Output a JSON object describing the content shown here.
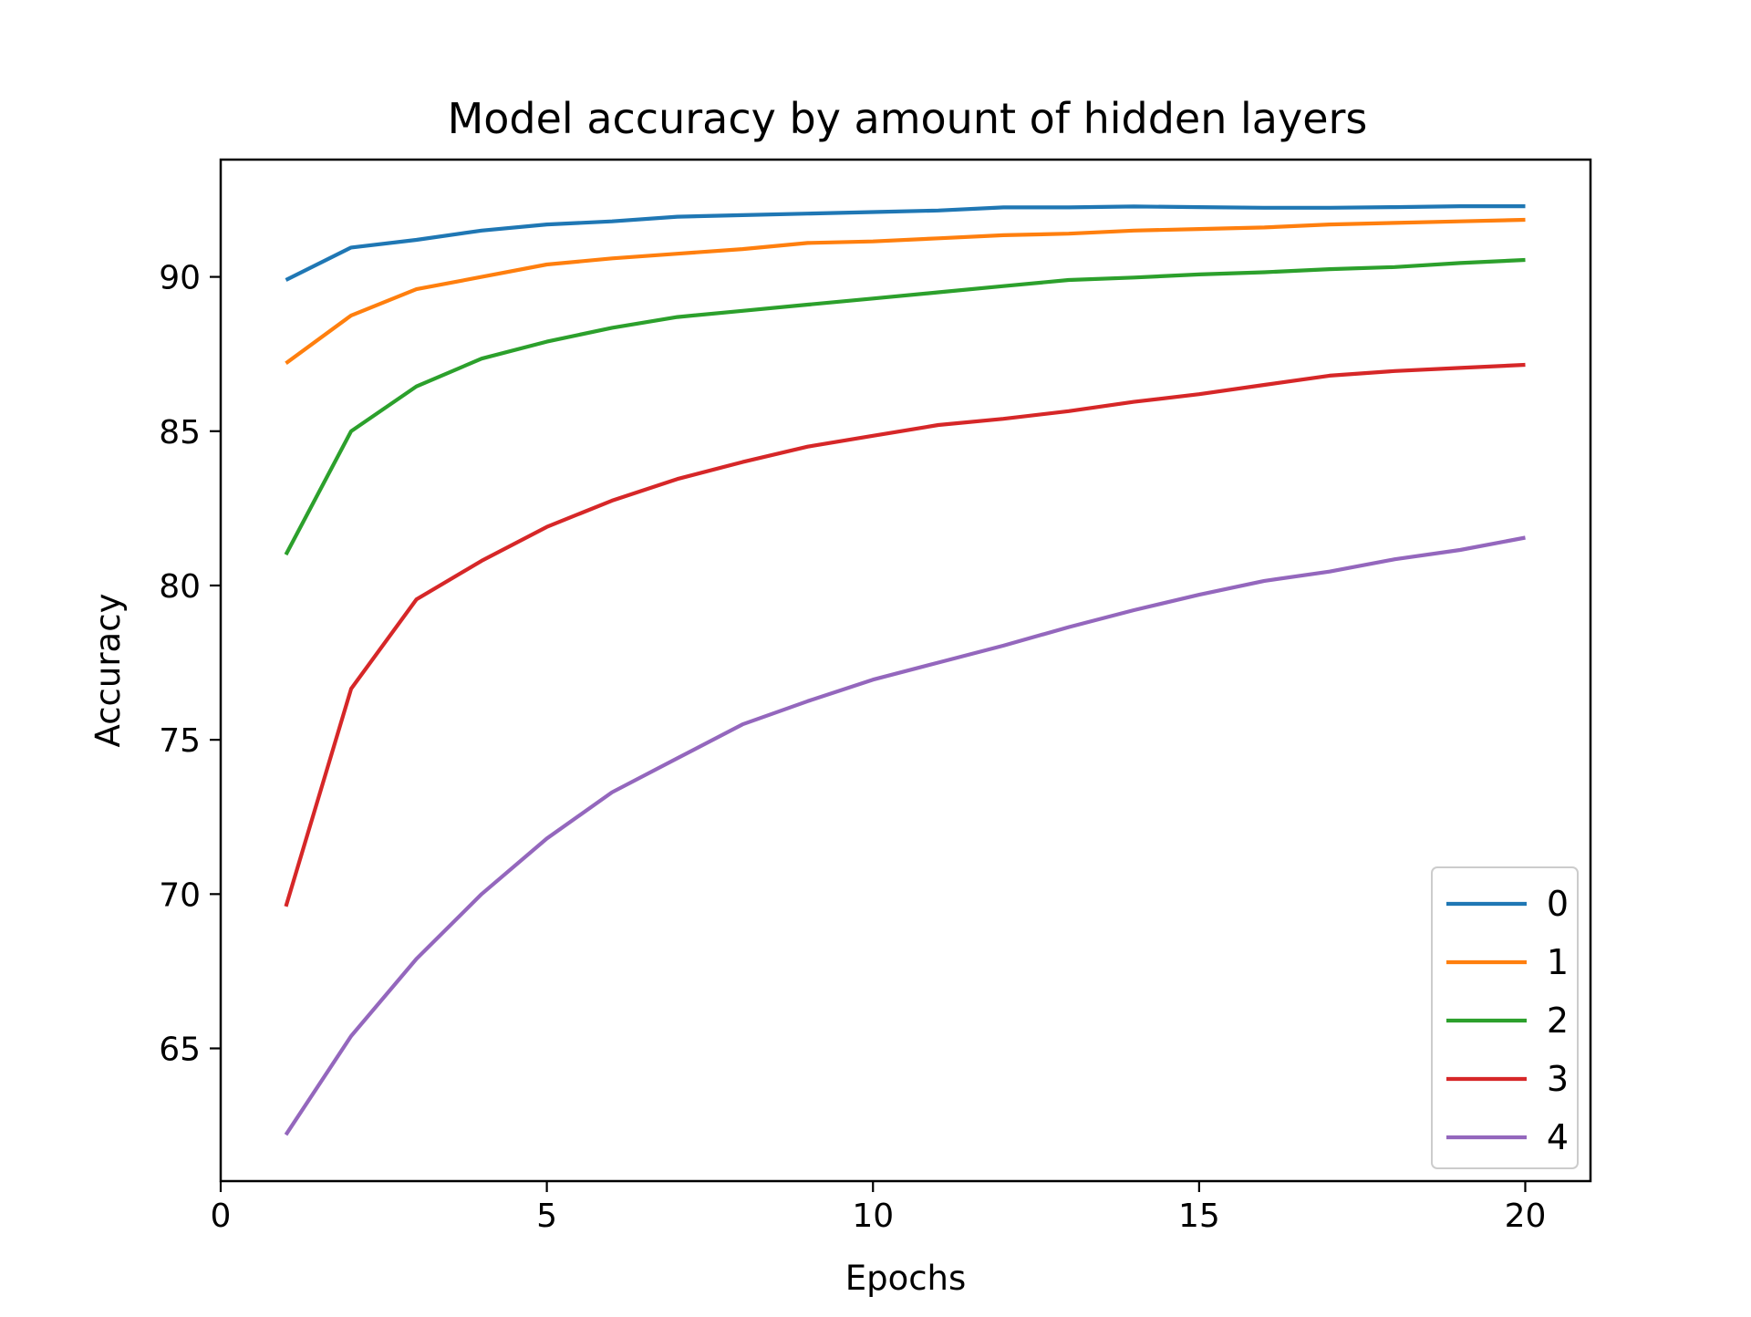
{
  "chart_data": {
    "type": "line",
    "title": "Model accuracy by amount of hidden layers",
    "xlabel": "Epochs",
    "ylabel": "Accuracy",
    "xlim": [
      0,
      21
    ],
    "ylim": [
      60.7,
      93.8
    ],
    "grid": false,
    "legend_position": "lower-right",
    "x_ticks": [
      0,
      5,
      10,
      15,
      20
    ],
    "x_tick_labels": [
      "0",
      "5",
      "10",
      "15",
      "20"
    ],
    "y_ticks": [
      65,
      70,
      75,
      80,
      85,
      90
    ],
    "y_tick_labels": [
      "65",
      "70",
      "75",
      "80",
      "85",
      "90"
    ],
    "x": [
      1,
      2,
      3,
      4,
      5,
      6,
      7,
      8,
      9,
      10,
      11,
      12,
      13,
      14,
      15,
      16,
      17,
      18,
      19,
      20
    ],
    "series": [
      {
        "name": "0",
        "color": "#1f77b4",
        "values": [
          89.9,
          90.95,
          91.2,
          91.5,
          91.7,
          91.8,
          91.95,
          92.0,
          92.05,
          92.1,
          92.15,
          92.25,
          92.25,
          92.28,
          92.26,
          92.24,
          92.24,
          92.26,
          92.29,
          92.29
        ]
      },
      {
        "name": "1",
        "color": "#ff7f0e",
        "values": [
          87.2,
          88.75,
          89.6,
          90.0,
          90.4,
          90.6,
          90.75,
          90.9,
          91.1,
          91.15,
          91.25,
          91.35,
          91.4,
          91.5,
          91.55,
          91.6,
          91.7,
          91.75,
          91.8,
          91.85
        ]
      },
      {
        "name": "2",
        "color": "#2ca02c",
        "values": [
          81.0,
          85.0,
          86.45,
          87.35,
          87.9,
          88.35,
          88.7,
          88.9,
          89.1,
          89.3,
          89.5,
          89.7,
          89.9,
          89.98,
          90.08,
          90.15,
          90.25,
          90.32,
          90.45,
          90.55
        ]
      },
      {
        "name": "3",
        "color": "#d62728",
        "values": [
          69.6,
          76.65,
          79.55,
          80.8,
          81.9,
          82.75,
          83.45,
          84.0,
          84.5,
          84.85,
          85.2,
          85.4,
          85.65,
          85.95,
          86.2,
          86.5,
          86.8,
          86.95,
          87.05,
          87.15
        ]
      },
      {
        "name": "4",
        "color": "#9467bd",
        "values": [
          62.2,
          65.4,
          67.9,
          70.0,
          71.8,
          73.3,
          74.4,
          75.5,
          76.25,
          76.95,
          77.5,
          78.05,
          78.65,
          79.2,
          79.7,
          80.15,
          80.45,
          80.85,
          81.15,
          81.55
        ]
      }
    ]
  }
}
